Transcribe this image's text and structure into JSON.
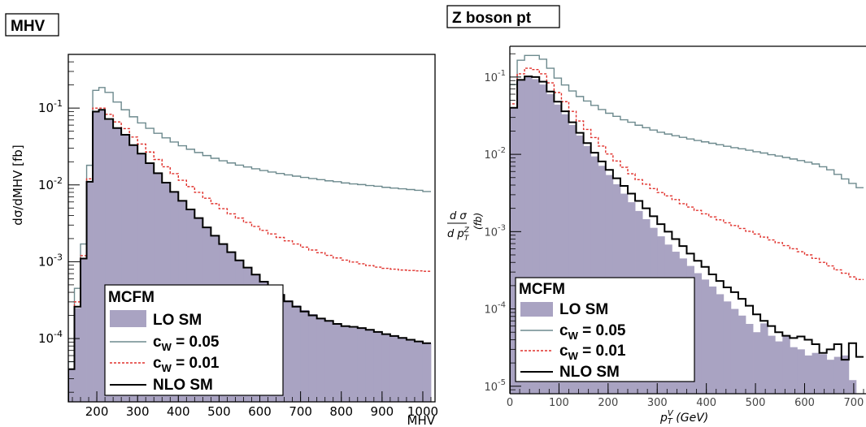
{
  "chart_data": [
    {
      "type": "histogram",
      "title": "MHV",
      "xlabel": "MHV",
      "ylabel": "dσ/dMHV [fb]",
      "yscale": "log",
      "xlim": [
        130,
        1030
      ],
      "ylim": [
        1.5e-05,
        0.5
      ],
      "x_tick_labels": [
        "200",
        "300",
        "400",
        "500",
        "600",
        "700",
        "800",
        "900",
        "1000"
      ],
      "y_tick_labels": [
        {
          "base": "10",
          "exp": "-1"
        },
        {
          "base": "10",
          "exp": "-2"
        },
        {
          "base": "10",
          "exp": "-3"
        },
        {
          "base": "10",
          "exp": "-4"
        }
      ],
      "bin_edges": [
        130,
        145,
        160,
        175,
        190,
        205,
        220,
        240,
        260,
        280,
        300,
        320,
        340,
        360,
        380,
        400,
        420,
        440,
        460,
        480,
        500,
        520,
        540,
        560,
        580,
        600,
        620,
        640,
        660,
        680,
        700,
        720,
        740,
        760,
        780,
        800,
        820,
        840,
        860,
        880,
        900,
        920,
        940,
        960,
        980,
        1000,
        1020
      ],
      "series": [
        {
          "name": "LO SM",
          "style": "fill",
          "color": "#a9a3c2",
          "values": [
            4e-05,
            0.00025,
            0.0011,
            0.011,
            0.09,
            0.093,
            0.07,
            0.054,
            0.045,
            0.033,
            0.0255,
            0.0192,
            0.0142,
            0.0107,
            0.0081,
            0.0062,
            0.0048,
            0.0037,
            0.0028,
            0.00218,
            0.0017,
            0.00133,
            0.00104,
            0.00084,
            0.00068,
            0.00056,
            0.00046,
            0.00038,
            0.000315,
            0.00027,
            0.000235,
            0.000208,
            0.000186,
            0.000168,
            0.000152,
            0.000142,
            0.000138,
            0.000134,
            0.000128,
            0.000122,
            0.000114,
            0.000108,
            0.000102,
            9.65e-05,
            9.15e-05,
            8.7e-05
          ]
        },
        {
          "name": "c_W = 0.05",
          "style": "line",
          "color": "#6d8a8e",
          "values": [
            5e-05,
            0.00045,
            0.0017,
            0.018,
            0.17,
            0.185,
            0.16,
            0.12,
            0.095,
            0.077,
            0.064,
            0.0545,
            0.047,
            0.041,
            0.0362,
            0.0323,
            0.0291,
            0.0264,
            0.0241,
            0.0222,
            0.0206,
            0.0193,
            0.0181,
            0.0171,
            0.0162,
            0.0154,
            0.0147,
            0.0141,
            0.0135,
            0.013,
            0.0125,
            0.0121,
            0.0117,
            0.0113,
            0.011,
            0.0106,
            0.0103,
            0.0101,
            0.0098,
            0.0096,
            0.0093,
            0.0091,
            0.0089,
            0.0087,
            0.0085,
            0.0082
          ]
        },
        {
          "name": "c_W = 0.01",
          "style": "dashed",
          "color": "#e0302b",
          "values": [
            4e-05,
            0.0003,
            0.0012,
            0.012,
            0.1,
            0.1,
            0.083,
            0.066,
            0.054,
            0.042,
            0.034,
            0.0268,
            0.0214,
            0.0172,
            0.014,
            0.0115,
            0.0095,
            0.008,
            0.0067,
            0.0057,
            0.0049,
            0.0042,
            0.0037,
            0.00325,
            0.00288,
            0.00256,
            0.0023,
            0.00207,
            0.00187,
            0.0017,
            0.00155,
            0.00142,
            0.00131,
            0.00121,
            0.00112,
            0.00105,
            0.00099,
            0.00094,
            0.00089,
            0.00085,
            0.00082,
            0.0008,
            0.00078,
            0.00077,
            0.00076,
            0.00075
          ]
        },
        {
          "name": "NLO SM",
          "style": "line",
          "color": "#000000",
          "values": [
            4e-05,
            0.00026,
            0.0011,
            0.011,
            0.09,
            0.095,
            0.072,
            0.055,
            0.045,
            0.033,
            0.0255,
            0.0192,
            0.0142,
            0.0107,
            0.0081,
            0.0062,
            0.0048,
            0.0037,
            0.0028,
            0.00218,
            0.0017,
            0.00133,
            0.00104,
            0.00084,
            0.00068,
            0.00055,
            0.00045,
            0.00037,
            0.000305,
            0.00026,
            0.000225,
            0.0002,
            0.000182,
            0.00017,
            0.000155,
            0.000145,
            0.000142,
            0.000137,
            0.00013,
            0.000122,
            0.000114,
            0.000108,
            0.000102,
            9.65e-05,
            9.15e-05,
            8.7e-05
          ]
        }
      ],
      "legend": {
        "header": "MCFM",
        "entries": [
          "LO SM",
          "c_W = 0.05",
          "c_W = 0.01",
          "NLO SM"
        ],
        "position": "bottom-left"
      }
    },
    {
      "type": "histogram",
      "title": "Z boson pt",
      "xlabel": "p_T^V (GeV)",
      "ylabel": "dσ/dp_T^Z (fb)",
      "yscale": "log",
      "xlim": [
        0,
        725
      ],
      "ylim": [
        8e-06,
        0.25
      ],
      "x_tick_labels": [
        "0",
        "100",
        "200",
        "300",
        "400",
        "500",
        "600",
        "700"
      ],
      "y_tick_labels": [
        {
          "base": "10",
          "exp": "-1"
        },
        {
          "base": "10",
          "exp": "-2"
        },
        {
          "base": "10",
          "exp": "-3"
        },
        {
          "base": "10",
          "exp": "-4"
        },
        {
          "base": "10",
          "exp": "-5"
        }
      ],
      "bin_edges": [
        0,
        15,
        30,
        45,
        60,
        75,
        90,
        105,
        120,
        135,
        150,
        165,
        180,
        195,
        210,
        225,
        240,
        255,
        270,
        285,
        300,
        315,
        330,
        345,
        360,
        375,
        390,
        405,
        420,
        435,
        450,
        465,
        480,
        495,
        510,
        525,
        540,
        555,
        570,
        585,
        600,
        615,
        630,
        645,
        660,
        675,
        690,
        705,
        720
      ],
      "series": [
        {
          "name": "LO SM",
          "style": "fill",
          "color": "#a9a3c2",
          "values": [
            0.04,
            0.09,
            0.1,
            0.094,
            0.08,
            0.06,
            0.044,
            0.033,
            0.024,
            0.0175,
            0.0128,
            0.0094,
            0.0071,
            0.0054,
            0.0041,
            0.0031,
            0.0024,
            0.00185,
            0.00145,
            0.00112,
            0.00087,
            0.00068,
            0.00055,
            0.00045,
            0.00036,
            0.00029,
            0.00024,
            0.000195,
            0.000155,
            0.000125,
            0.0001,
            8.2e-05,
            6.4e-05,
            5e-05,
            6.5e-05,
            4.5e-05,
            3.8e-05,
            4.4e-05,
            3.2e-05,
            3e-05,
            2.5e-05,
            2.7e-05,
            2.6e-05,
            2.2e-05,
            2.4e-05,
            2.5e-05,
            1.2e-05,
            8e-06
          ]
        },
        {
          "name": "c_W = 0.05",
          "style": "line",
          "color": "#6d8a8e",
          "values": [
            0.08,
            0.165,
            0.19,
            0.19,
            0.17,
            0.13,
            0.097,
            0.079,
            0.066,
            0.056,
            0.049,
            0.043,
            0.038,
            0.034,
            0.031,
            0.028,
            0.026,
            0.0238,
            0.0221,
            0.0206,
            0.0193,
            0.0183,
            0.0174,
            0.0166,
            0.0158,
            0.0151,
            0.0145,
            0.0139,
            0.0133,
            0.0127,
            0.0122,
            0.0118,
            0.0113,
            0.0108,
            0.0104,
            0.0099,
            0.0095,
            0.0091,
            0.0087,
            0.0083,
            0.0079,
            0.0075,
            0.0069,
            0.0063,
            0.0055,
            0.0048,
            0.0042,
            0.0037
          ]
        },
        {
          "name": "c_W = 0.01",
          "style": "dashed",
          "color": "#e0302b",
          "values": [
            0.045,
            0.11,
            0.13,
            0.125,
            0.11,
            0.084,
            0.063,
            0.048,
            0.036,
            0.027,
            0.021,
            0.0165,
            0.0128,
            0.0101,
            0.0082,
            0.0068,
            0.0056,
            0.0047,
            0.0041,
            0.0036,
            0.0032,
            0.0029,
            0.0026,
            0.0023,
            0.00208,
            0.00188,
            0.0017,
            0.00155,
            0.00142,
            0.0013,
            0.0012,
            0.0011,
            0.00101,
            0.00093,
            0.00085,
            0.00078,
            0.00072,
            0.00066,
            0.0006,
            0.00055,
            0.0005,
            0.00045,
            0.0004,
            0.00036,
            0.00032,
            0.00029,
            0.00026,
            0.00024
          ]
        },
        {
          "name": "NLO SM",
          "style": "line",
          "color": "#000000",
          "values": [
            0.04,
            0.092,
            0.102,
            0.1,
            0.087,
            0.065,
            0.048,
            0.036,
            0.026,
            0.019,
            0.014,
            0.0105,
            0.0081,
            0.0063,
            0.0049,
            0.0039,
            0.0031,
            0.0025,
            0.002,
            0.00158,
            0.00125,
            0.001,
            0.0008,
            0.00065,
            0.00052,
            0.00042,
            0.00035,
            0.00028,
            0.00023,
            0.00019,
            0.000165,
            0.000135,
            0.00011,
            8.5e-05,
            7e-05,
            6e-05,
            5e-05,
            4.5e-05,
            4.2e-05,
            4.4e-05,
            4e-05,
            3.5e-05,
            2.7e-05,
            3e-05,
            3.5e-05,
            2.2e-05,
            3.6e-05,
            2.4e-05
          ]
        }
      ],
      "legend": {
        "header": "MCFM",
        "entries": [
          "LO SM",
          "c_W = 0.05",
          "c_W = 0.01",
          "NLO SM"
        ],
        "position": "bottom-left"
      }
    }
  ]
}
